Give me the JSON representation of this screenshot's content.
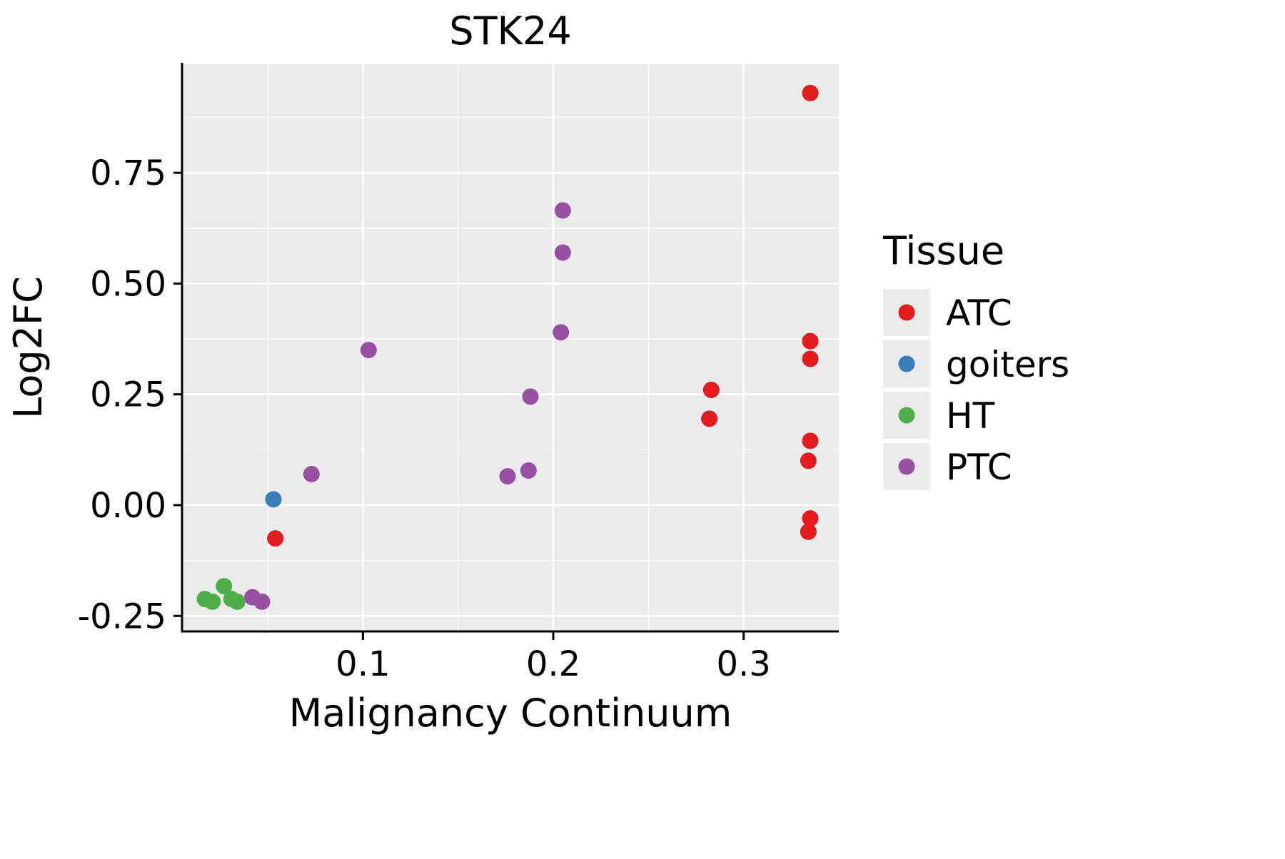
{
  "title": "STK24",
  "axes": {
    "x_label": "Malignancy Continuum",
    "y_label": "Log2FC",
    "x_tick_labels": [
      "0.1",
      "0.2",
      "0.3"
    ],
    "x_tick_values": [
      0.1,
      0.2,
      0.3
    ],
    "y_tick_labels": [
      "-0.25",
      "0.00",
      "0.25",
      "0.50",
      "0.75"
    ],
    "y_tick_values": [
      -0.25,
      0.0,
      0.25,
      0.5,
      0.75
    ]
  },
  "legend": {
    "title": "Tissue",
    "items": [
      {
        "label": "ATC",
        "color": "#E41A1C"
      },
      {
        "label": "goiters",
        "color": "#377EB8"
      },
      {
        "label": "HT",
        "color": "#4DAF4A"
      },
      {
        "label": "PTC",
        "color": "#984EA3"
      }
    ]
  },
  "style": {
    "panel_background": "#EBEBEB",
    "grid_color": "#FFFFFF",
    "axis_color": "#000000",
    "legend_key_background": "#EBEBEB"
  },
  "chart_data": {
    "type": "scatter",
    "title": "STK24",
    "xlabel": "Malignancy Continuum",
    "ylabel": "Log2FC",
    "xlim": [
      0.005,
      0.35
    ],
    "ylim": [
      -0.285,
      0.995
    ],
    "grid": true,
    "legend_position": "right",
    "legend_title": "Tissue",
    "series": [
      {
        "name": "ATC",
        "color": "#E41A1C",
        "points": [
          [
            0.335,
            0.93
          ],
          [
            0.335,
            0.37
          ],
          [
            0.335,
            0.33
          ],
          [
            0.283,
            0.26
          ],
          [
            0.282,
            0.195
          ],
          [
            0.335,
            0.145
          ],
          [
            0.334,
            0.1
          ],
          [
            0.335,
            -0.03
          ],
          [
            0.334,
            -0.06
          ],
          [
            0.054,
            -0.075
          ]
        ]
      },
      {
        "name": "goiters",
        "color": "#377EB8",
        "points": [
          [
            0.053,
            0.013
          ]
        ]
      },
      {
        "name": "HT",
        "color": "#4DAF4A",
        "points": [
          [
            0.027,
            -0.183
          ],
          [
            0.017,
            -0.212
          ],
          [
            0.021,
            -0.218
          ],
          [
            0.031,
            -0.212
          ],
          [
            0.034,
            -0.218
          ]
        ]
      },
      {
        "name": "PTC",
        "color": "#984EA3",
        "points": [
          [
            0.103,
            0.35
          ],
          [
            0.205,
            0.665
          ],
          [
            0.205,
            0.57
          ],
          [
            0.204,
            0.39
          ],
          [
            0.188,
            0.245
          ],
          [
            0.187,
            0.078
          ],
          [
            0.176,
            0.065
          ],
          [
            0.073,
            0.07
          ],
          [
            0.042,
            -0.208
          ],
          [
            0.047,
            -0.218
          ]
        ]
      }
    ]
  }
}
